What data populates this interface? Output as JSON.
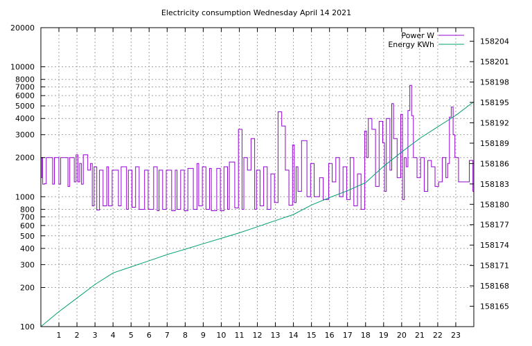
{
  "chart_data": {
    "type": "line",
    "title": "Electricity consumption Wednesday April 14 2021",
    "xlabel": "",
    "ylabel": "",
    "xlim": [
      0,
      24
    ],
    "x_ticks": [
      1,
      2,
      3,
      4,
      5,
      6,
      7,
      8,
      9,
      10,
      11,
      12,
      13,
      14,
      15,
      16,
      17,
      18,
      19,
      20,
      21,
      22,
      23
    ],
    "y_scale": "log",
    "ylim": [
      100,
      20000
    ],
    "y_ticks": [
      100,
      200,
      300,
      400,
      500,
      600,
      700,
      800,
      1000,
      2000,
      3000,
      4000,
      5000,
      6000,
      7000,
      8000,
      10000,
      20000
    ],
    "y2lim": [
      158162,
      158206
    ],
    "y2_ticks": [
      158165,
      158168,
      158171,
      158174,
      158177,
      158180,
      158183,
      158186,
      158189,
      158192,
      158195,
      158198,
      158201,
      158204
    ],
    "grid": true,
    "legend": "top-right",
    "series": [
      {
        "name": "Power W",
        "color": "#9400d3",
        "axis": "left",
        "x": [
          0.0,
          0.05,
          0.1,
          0.2,
          0.3,
          0.65,
          0.75,
          1.0,
          1.1,
          1.5,
          1.6,
          1.85,
          1.95,
          2.05,
          2.15,
          2.25,
          2.35,
          2.6,
          2.75,
          2.85,
          2.95,
          3.1,
          3.25,
          3.45,
          3.65,
          3.75,
          3.95,
          4.3,
          4.45,
          4.75,
          4.85,
          5.05,
          5.25,
          5.45,
          5.75,
          5.95,
          6.25,
          6.45,
          6.55,
          6.75,
          6.95,
          7.25,
          7.45,
          7.55,
          7.75,
          7.95,
          8.15,
          8.45,
          8.65,
          8.75,
          8.95,
          9.15,
          9.35,
          9.45,
          9.75,
          9.95,
          10.15,
          10.35,
          10.45,
          10.75,
          10.95,
          11.15,
          11.25,
          11.45,
          11.65,
          11.85,
          11.95,
          12.15,
          12.35,
          12.55,
          12.75,
          12.95,
          13.15,
          13.35,
          13.55,
          13.75,
          13.95,
          14.05,
          14.15,
          14.25,
          14.45,
          14.75,
          14.95,
          15.15,
          15.45,
          15.65,
          15.95,
          16.15,
          16.35,
          16.55,
          16.75,
          16.95,
          17.15,
          17.35,
          17.55,
          17.75,
          17.95,
          18.05,
          18.15,
          18.35,
          18.55,
          18.75,
          18.95,
          19.05,
          19.15,
          19.35,
          19.45,
          19.55,
          19.75,
          19.95,
          20.05,
          20.15,
          20.25,
          20.35,
          20.45,
          20.55,
          20.65,
          20.85,
          21.05,
          21.25,
          21.45,
          21.65,
          21.85,
          22.05,
          22.25,
          22.45,
          22.55,
          22.65,
          22.75,
          22.85,
          22.95,
          23.15,
          23.45,
          23.75,
          23.95
        ],
        "values": [
          1400,
          2000,
          1250,
          1260,
          2000,
          1250,
          2000,
          1250,
          2000,
          1200,
          2000,
          1300,
          2100,
          1300,
          1800,
          1250,
          2100,
          1600,
          1800,
          850,
          1700,
          790,
          1600,
          850,
          1700,
          850,
          1600,
          850,
          1700,
          800,
          1600,
          830,
          1700,
          800,
          1600,
          800,
          1700,
          780,
          1600,
          800,
          1600,
          780,
          1600,
          800,
          1600,
          780,
          1650,
          800,
          1800,
          850,
          1700,
          800,
          1650,
          780,
          1650,
          780,
          1700,
          800,
          1850,
          820,
          3300,
          800,
          2000,
          1600,
          2800,
          800,
          1600,
          850,
          1700,
          800,
          1500,
          900,
          4500,
          3500,
          1600,
          860,
          2500,
          900,
          1700,
          1100,
          2700,
          1000,
          1800,
          1000,
          1400,
          950,
          1800,
          1300,
          2000,
          1000,
          1700,
          950,
          2000,
          850,
          1500,
          800,
          3200,
          2000,
          4000,
          3300,
          1200,
          3800,
          2600,
          1100,
          4000,
          1600,
          5200,
          2800,
          1400,
          4300,
          950,
          2000,
          1700,
          4600,
          7200,
          4200,
          2000,
          1400,
          2000,
          1100,
          1900,
          1700,
          1200,
          1300,
          2000,
          1400,
          1800,
          4100,
          4900,
          3000,
          2000,
          1300,
          1300,
          1900,
          1100
        ]
      },
      {
        "name": "Energy KWh",
        "color": "#009e73",
        "axis": "right",
        "x": [
          0,
          1,
          2,
          3,
          4,
          5,
          6,
          7,
          8,
          9,
          10,
          11,
          12,
          13,
          14,
          15,
          16,
          17,
          18,
          19,
          20,
          21,
          22,
          23,
          24
        ],
        "values": [
          158162.0,
          158164.2,
          158166.2,
          158168.2,
          158169.9,
          158170.8,
          158171.7,
          158172.6,
          158173.4,
          158174.2,
          158175.0,
          158175.8,
          158176.7,
          158177.6,
          158178.5,
          158179.9,
          158181.0,
          158182.0,
          158183.2,
          158185.6,
          158187.7,
          158189.7,
          158191.4,
          158193.1,
          158195.1
        ]
      }
    ]
  }
}
